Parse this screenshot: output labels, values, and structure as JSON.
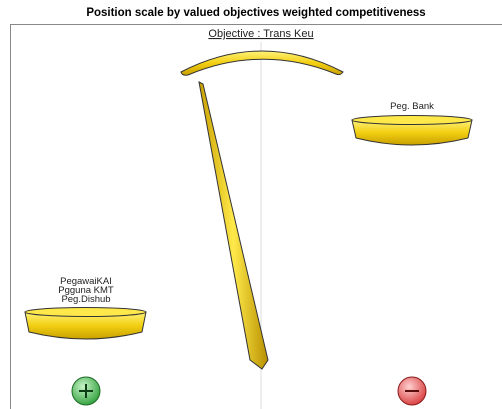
{
  "title": "Position scale by valued objectives weighted competitiveness",
  "objective": "Objective : Trans Keu",
  "left_pan": {
    "labels": [
      "PegawaiKAI",
      "Pgguna KMT",
      "Peg.Dishub"
    ]
  },
  "right_pan": {
    "labels": [
      "Peg. Bank"
    ]
  }
}
